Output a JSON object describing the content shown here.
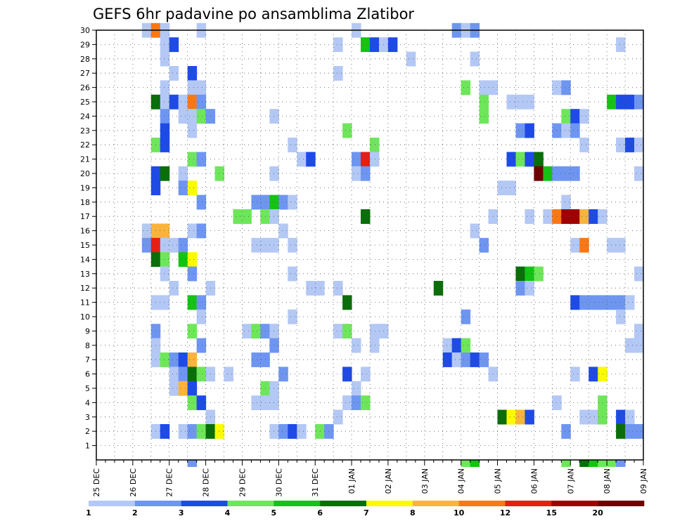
{
  "chart_data": {
    "type": "heatmap",
    "title": "GEFS 6hr padavine po ansamblima Zlatibor",
    "xlabel": "",
    "ylabel": "",
    "x_tick_labels": [
      "25 DEC",
      "26 DEC",
      "27 DEC",
      "28 DEC",
      "29 DEC",
      "30 DEC",
      "31 DEC",
      "01 JAN",
      "02 JAN",
      "03 JAN",
      "04 JAN",
      "05 JAN",
      "06 JAN",
      "07 JAN",
      "08 JAN",
      "09 JAN"
    ],
    "y_tick_labels": [
      "1",
      "2",
      "3",
      "4",
      "5",
      "6",
      "7",
      "8",
      "9",
      "10",
      "11",
      "12",
      "13",
      "14",
      "15",
      "16",
      "17",
      "18",
      "19",
      "20",
      "21",
      "22",
      "23",
      "24",
      "25",
      "26",
      "27",
      "28",
      "29",
      "30"
    ],
    "x_range_steps": [
      0,
      60
    ],
    "y_range": [
      0,
      30
    ],
    "steps_per_day": 4,
    "grid": true,
    "colorbar": {
      "labels": [
        "1",
        "2",
        "3",
        "4",
        "5",
        "6",
        "7",
        "8",
        "10",
        "12",
        "15",
        "20"
      ],
      "colors": [
        "#b4c8f5",
        "#6e96f0",
        "#1e4be6",
        "#6ee65a",
        "#14c314",
        "#0a6e0a",
        "#fafa00",
        "#fab43c",
        "#fa7814",
        "#e61e14",
        "#a00000",
        "#6e0000"
      ]
    },
    "cells": [
      [
        5,
        30,
        1
      ],
      [
        6,
        30,
        9
      ],
      [
        7,
        30,
        1
      ],
      [
        11,
        30,
        1
      ],
      [
        28,
        30,
        1
      ],
      [
        39,
        30,
        2
      ],
      [
        40,
        30,
        1
      ],
      [
        41,
        30,
        2
      ],
      [
        7,
        29,
        1
      ],
      [
        8,
        29,
        3
      ],
      [
        26,
        29,
        1
      ],
      [
        29,
        29,
        5
      ],
      [
        30,
        29,
        3
      ],
      [
        31,
        29,
        1
      ],
      [
        32,
        29,
        3
      ],
      [
        57,
        29,
        1
      ],
      [
        7,
        28,
        1
      ],
      [
        34,
        28,
        1
      ],
      [
        41,
        28,
        1
      ],
      [
        8,
        27,
        1
      ],
      [
        10,
        27,
        3
      ],
      [
        26,
        27,
        1
      ],
      [
        7,
        26,
        1
      ],
      [
        10,
        26,
        1
      ],
      [
        11,
        26,
        1
      ],
      [
        40,
        26,
        4
      ],
      [
        42,
        26,
        1
      ],
      [
        43,
        26,
        1
      ],
      [
        50,
        26,
        1
      ],
      [
        51,
        26,
        2
      ],
      [
        6,
        25,
        6
      ],
      [
        7,
        25,
        1
      ],
      [
        8,
        25,
        3
      ],
      [
        9,
        25,
        1
      ],
      [
        10,
        25,
        9
      ],
      [
        11,
        25,
        2
      ],
      [
        42,
        25,
        4
      ],
      [
        45,
        25,
        1
      ],
      [
        46,
        25,
        1
      ],
      [
        47,
        25,
        1
      ],
      [
        56,
        25,
        5
      ],
      [
        57,
        25,
        3
      ],
      [
        58,
        25,
        3
      ],
      [
        59,
        25,
        2
      ],
      [
        7,
        24,
        2
      ],
      [
        9,
        24,
        1
      ],
      [
        10,
        24,
        1
      ],
      [
        11,
        24,
        4
      ],
      [
        12,
        24,
        2
      ],
      [
        19,
        24,
        1
      ],
      [
        42,
        24,
        4
      ],
      [
        51,
        24,
        4
      ],
      [
        52,
        24,
        3
      ],
      [
        53,
        24,
        1
      ],
      [
        7,
        23,
        3
      ],
      [
        10,
        23,
        1
      ],
      [
        27,
        23,
        4
      ],
      [
        46,
        23,
        2
      ],
      [
        47,
        23,
        3
      ],
      [
        50,
        23,
        2
      ],
      [
        51,
        23,
        1
      ],
      [
        52,
        23,
        2
      ],
      [
        6,
        22,
        4
      ],
      [
        7,
        22,
        3
      ],
      [
        21,
        22,
        1
      ],
      [
        30,
        22,
        4
      ],
      [
        53,
        22,
        1
      ],
      [
        57,
        22,
        1
      ],
      [
        58,
        22,
        3
      ],
      [
        59,
        22,
        1
      ],
      [
        10,
        21,
        4
      ],
      [
        11,
        21,
        2
      ],
      [
        22,
        21,
        1
      ],
      [
        23,
        21,
        3
      ],
      [
        28,
        21,
        2
      ],
      [
        29,
        21,
        10
      ],
      [
        30,
        21,
        1
      ],
      [
        45,
        21,
        3
      ],
      [
        46,
        21,
        4
      ],
      [
        47,
        21,
        3
      ],
      [
        48,
        21,
        6
      ],
      [
        6,
        20,
        3
      ],
      [
        7,
        20,
        6
      ],
      [
        9,
        20,
        1
      ],
      [
        13,
        20,
        4
      ],
      [
        19,
        20,
        1
      ],
      [
        28,
        20,
        1
      ],
      [
        29,
        20,
        2
      ],
      [
        48,
        20,
        12
      ],
      [
        49,
        20,
        5
      ],
      [
        50,
        20,
        2
      ],
      [
        51,
        20,
        2
      ],
      [
        52,
        20,
        2
      ],
      [
        59,
        20,
        1
      ],
      [
        6,
        19,
        3
      ],
      [
        9,
        19,
        2
      ],
      [
        10,
        19,
        7
      ],
      [
        44,
        19,
        1
      ],
      [
        45,
        19,
        1
      ],
      [
        11,
        18,
        2
      ],
      [
        17,
        18,
        2
      ],
      [
        18,
        18,
        2
      ],
      [
        19,
        18,
        5
      ],
      [
        20,
        18,
        2
      ],
      [
        21,
        18,
        1
      ],
      [
        51,
        18,
        1
      ],
      [
        15,
        17,
        4
      ],
      [
        16,
        17,
        4
      ],
      [
        18,
        17,
        4
      ],
      [
        19,
        17,
        1
      ],
      [
        29,
        17,
        6
      ],
      [
        43,
        17,
        1
      ],
      [
        47,
        17,
        1
      ],
      [
        49,
        17,
        1
      ],
      [
        50,
        17,
        9
      ],
      [
        51,
        17,
        11
      ],
      [
        52,
        17,
        11
      ],
      [
        53,
        17,
        8
      ],
      [
        54,
        17,
        3
      ],
      [
        55,
        17,
        1
      ],
      [
        5,
        16,
        1
      ],
      [
        6,
        16,
        8
      ],
      [
        7,
        16,
        8
      ],
      [
        10,
        16,
        1
      ],
      [
        11,
        16,
        2
      ],
      [
        20,
        16,
        1
      ],
      [
        41,
        16,
        1
      ],
      [
        5,
        15,
        2
      ],
      [
        6,
        15,
        10
      ],
      [
        7,
        15,
        1
      ],
      [
        8,
        15,
        1
      ],
      [
        9,
        15,
        2
      ],
      [
        17,
        15,
        1
      ],
      [
        18,
        15,
        1
      ],
      [
        19,
        15,
        1
      ],
      [
        21,
        15,
        1
      ],
      [
        42,
        15,
        2
      ],
      [
        52,
        15,
        1
      ],
      [
        53,
        15,
        9
      ],
      [
        56,
        15,
        1
      ],
      [
        57,
        15,
        1
      ],
      [
        6,
        14,
        6
      ],
      [
        7,
        14,
        4
      ],
      [
        9,
        14,
        5
      ],
      [
        10,
        14,
        7
      ],
      [
        7,
        13,
        1
      ],
      [
        10,
        13,
        2
      ],
      [
        21,
        13,
        1
      ],
      [
        46,
        13,
        6
      ],
      [
        47,
        13,
        5
      ],
      [
        48,
        13,
        4
      ],
      [
        59,
        13,
        1
      ],
      [
        8,
        12,
        1
      ],
      [
        12,
        12,
        1
      ],
      [
        23,
        12,
        1
      ],
      [
        24,
        12,
        1
      ],
      [
        26,
        12,
        1
      ],
      [
        37,
        12,
        6
      ],
      [
        46,
        12,
        2
      ],
      [
        47,
        12,
        1
      ],
      [
        6,
        11,
        1
      ],
      [
        7,
        11,
        1
      ],
      [
        10,
        11,
        5
      ],
      [
        11,
        11,
        2
      ],
      [
        27,
        11,
        6
      ],
      [
        52,
        11,
        3
      ],
      [
        53,
        11,
        2
      ],
      [
        54,
        11,
        2
      ],
      [
        55,
        11,
        2
      ],
      [
        56,
        11,
        2
      ],
      [
        57,
        11,
        2
      ],
      [
        58,
        11,
        1
      ],
      [
        11,
        10,
        1
      ],
      [
        21,
        10,
        1
      ],
      [
        40,
        10,
        2
      ],
      [
        57,
        10,
        1
      ],
      [
        6,
        9,
        2
      ],
      [
        10,
        9,
        4
      ],
      [
        16,
        9,
        1
      ],
      [
        17,
        9,
        4
      ],
      [
        18,
        9,
        2
      ],
      [
        19,
        9,
        1
      ],
      [
        26,
        9,
        1
      ],
      [
        27,
        9,
        4
      ],
      [
        30,
        9,
        1
      ],
      [
        31,
        9,
        1
      ],
      [
        59,
        9,
        1
      ],
      [
        6,
        8,
        1
      ],
      [
        11,
        8,
        2
      ],
      [
        19,
        8,
        2
      ],
      [
        28,
        8,
        1
      ],
      [
        30,
        8,
        1
      ],
      [
        38,
        8,
        1
      ],
      [
        39,
        8,
        3
      ],
      [
        40,
        8,
        4
      ],
      [
        58,
        8,
        1
      ],
      [
        59,
        8,
        1
      ],
      [
        6,
        7,
        1
      ],
      [
        7,
        7,
        4
      ],
      [
        8,
        7,
        2
      ],
      [
        9,
        7,
        3
      ],
      [
        10,
        7,
        8
      ],
      [
        17,
        7,
        2
      ],
      [
        18,
        7,
        2
      ],
      [
        38,
        7,
        3
      ],
      [
        39,
        7,
        1
      ],
      [
        40,
        7,
        2
      ],
      [
        41,
        7,
        3
      ],
      [
        42,
        7,
        2
      ],
      [
        8,
        6,
        1
      ],
      [
        9,
        6,
        2
      ],
      [
        10,
        6,
        6
      ],
      [
        11,
        6,
        4
      ],
      [
        12,
        6,
        1
      ],
      [
        14,
        6,
        1
      ],
      [
        20,
        6,
        2
      ],
      [
        27,
        6,
        3
      ],
      [
        29,
        6,
        1
      ],
      [
        43,
        6,
        1
      ],
      [
        52,
        6,
        1
      ],
      [
        54,
        6,
        3
      ],
      [
        55,
        6,
        7
      ],
      [
        8,
        5,
        1
      ],
      [
        9,
        5,
        8
      ],
      [
        10,
        5,
        3
      ],
      [
        18,
        5,
        4
      ],
      [
        19,
        5,
        1
      ],
      [
        28,
        5,
        1
      ],
      [
        10,
        4,
        4
      ],
      [
        11,
        4,
        3
      ],
      [
        17,
        4,
        1
      ],
      [
        18,
        4,
        1
      ],
      [
        19,
        4,
        1
      ],
      [
        27,
        4,
        1
      ],
      [
        28,
        4,
        2
      ],
      [
        29,
        4,
        4
      ],
      [
        50,
        4,
        1
      ],
      [
        55,
        4,
        4
      ],
      [
        12,
        3,
        1
      ],
      [
        26,
        3,
        1
      ],
      [
        44,
        3,
        6
      ],
      [
        45,
        3,
        7
      ],
      [
        46,
        3,
        8
      ],
      [
        47,
        3,
        3
      ],
      [
        53,
        3,
        1
      ],
      [
        54,
        3,
        1
      ],
      [
        55,
        3,
        4
      ],
      [
        57,
        3,
        3
      ],
      [
        58,
        3,
        1
      ],
      [
        6,
        2,
        1
      ],
      [
        7,
        2,
        3
      ],
      [
        9,
        2,
        1
      ],
      [
        10,
        2,
        2
      ],
      [
        11,
        2,
        4
      ],
      [
        12,
        2,
        6
      ],
      [
        13,
        2,
        7
      ],
      [
        19,
        2,
        1
      ],
      [
        20,
        2,
        2
      ],
      [
        21,
        2,
        3
      ],
      [
        22,
        2,
        1
      ],
      [
        24,
        2,
        4
      ],
      [
        25,
        2,
        2
      ],
      [
        51,
        2,
        2
      ],
      [
        57,
        2,
        6
      ],
      [
        58,
        2,
        2
      ],
      [
        59,
        2,
        2
      ]
    ],
    "below_axis_cells": [
      [
        10,
        2
      ],
      [
        40,
        4
      ],
      [
        41,
        5
      ],
      [
        51,
        4
      ],
      [
        53,
        6
      ],
      [
        54,
        5
      ],
      [
        55,
        4
      ],
      [
        56,
        4
      ],
      [
        57,
        2
      ]
    ]
  }
}
